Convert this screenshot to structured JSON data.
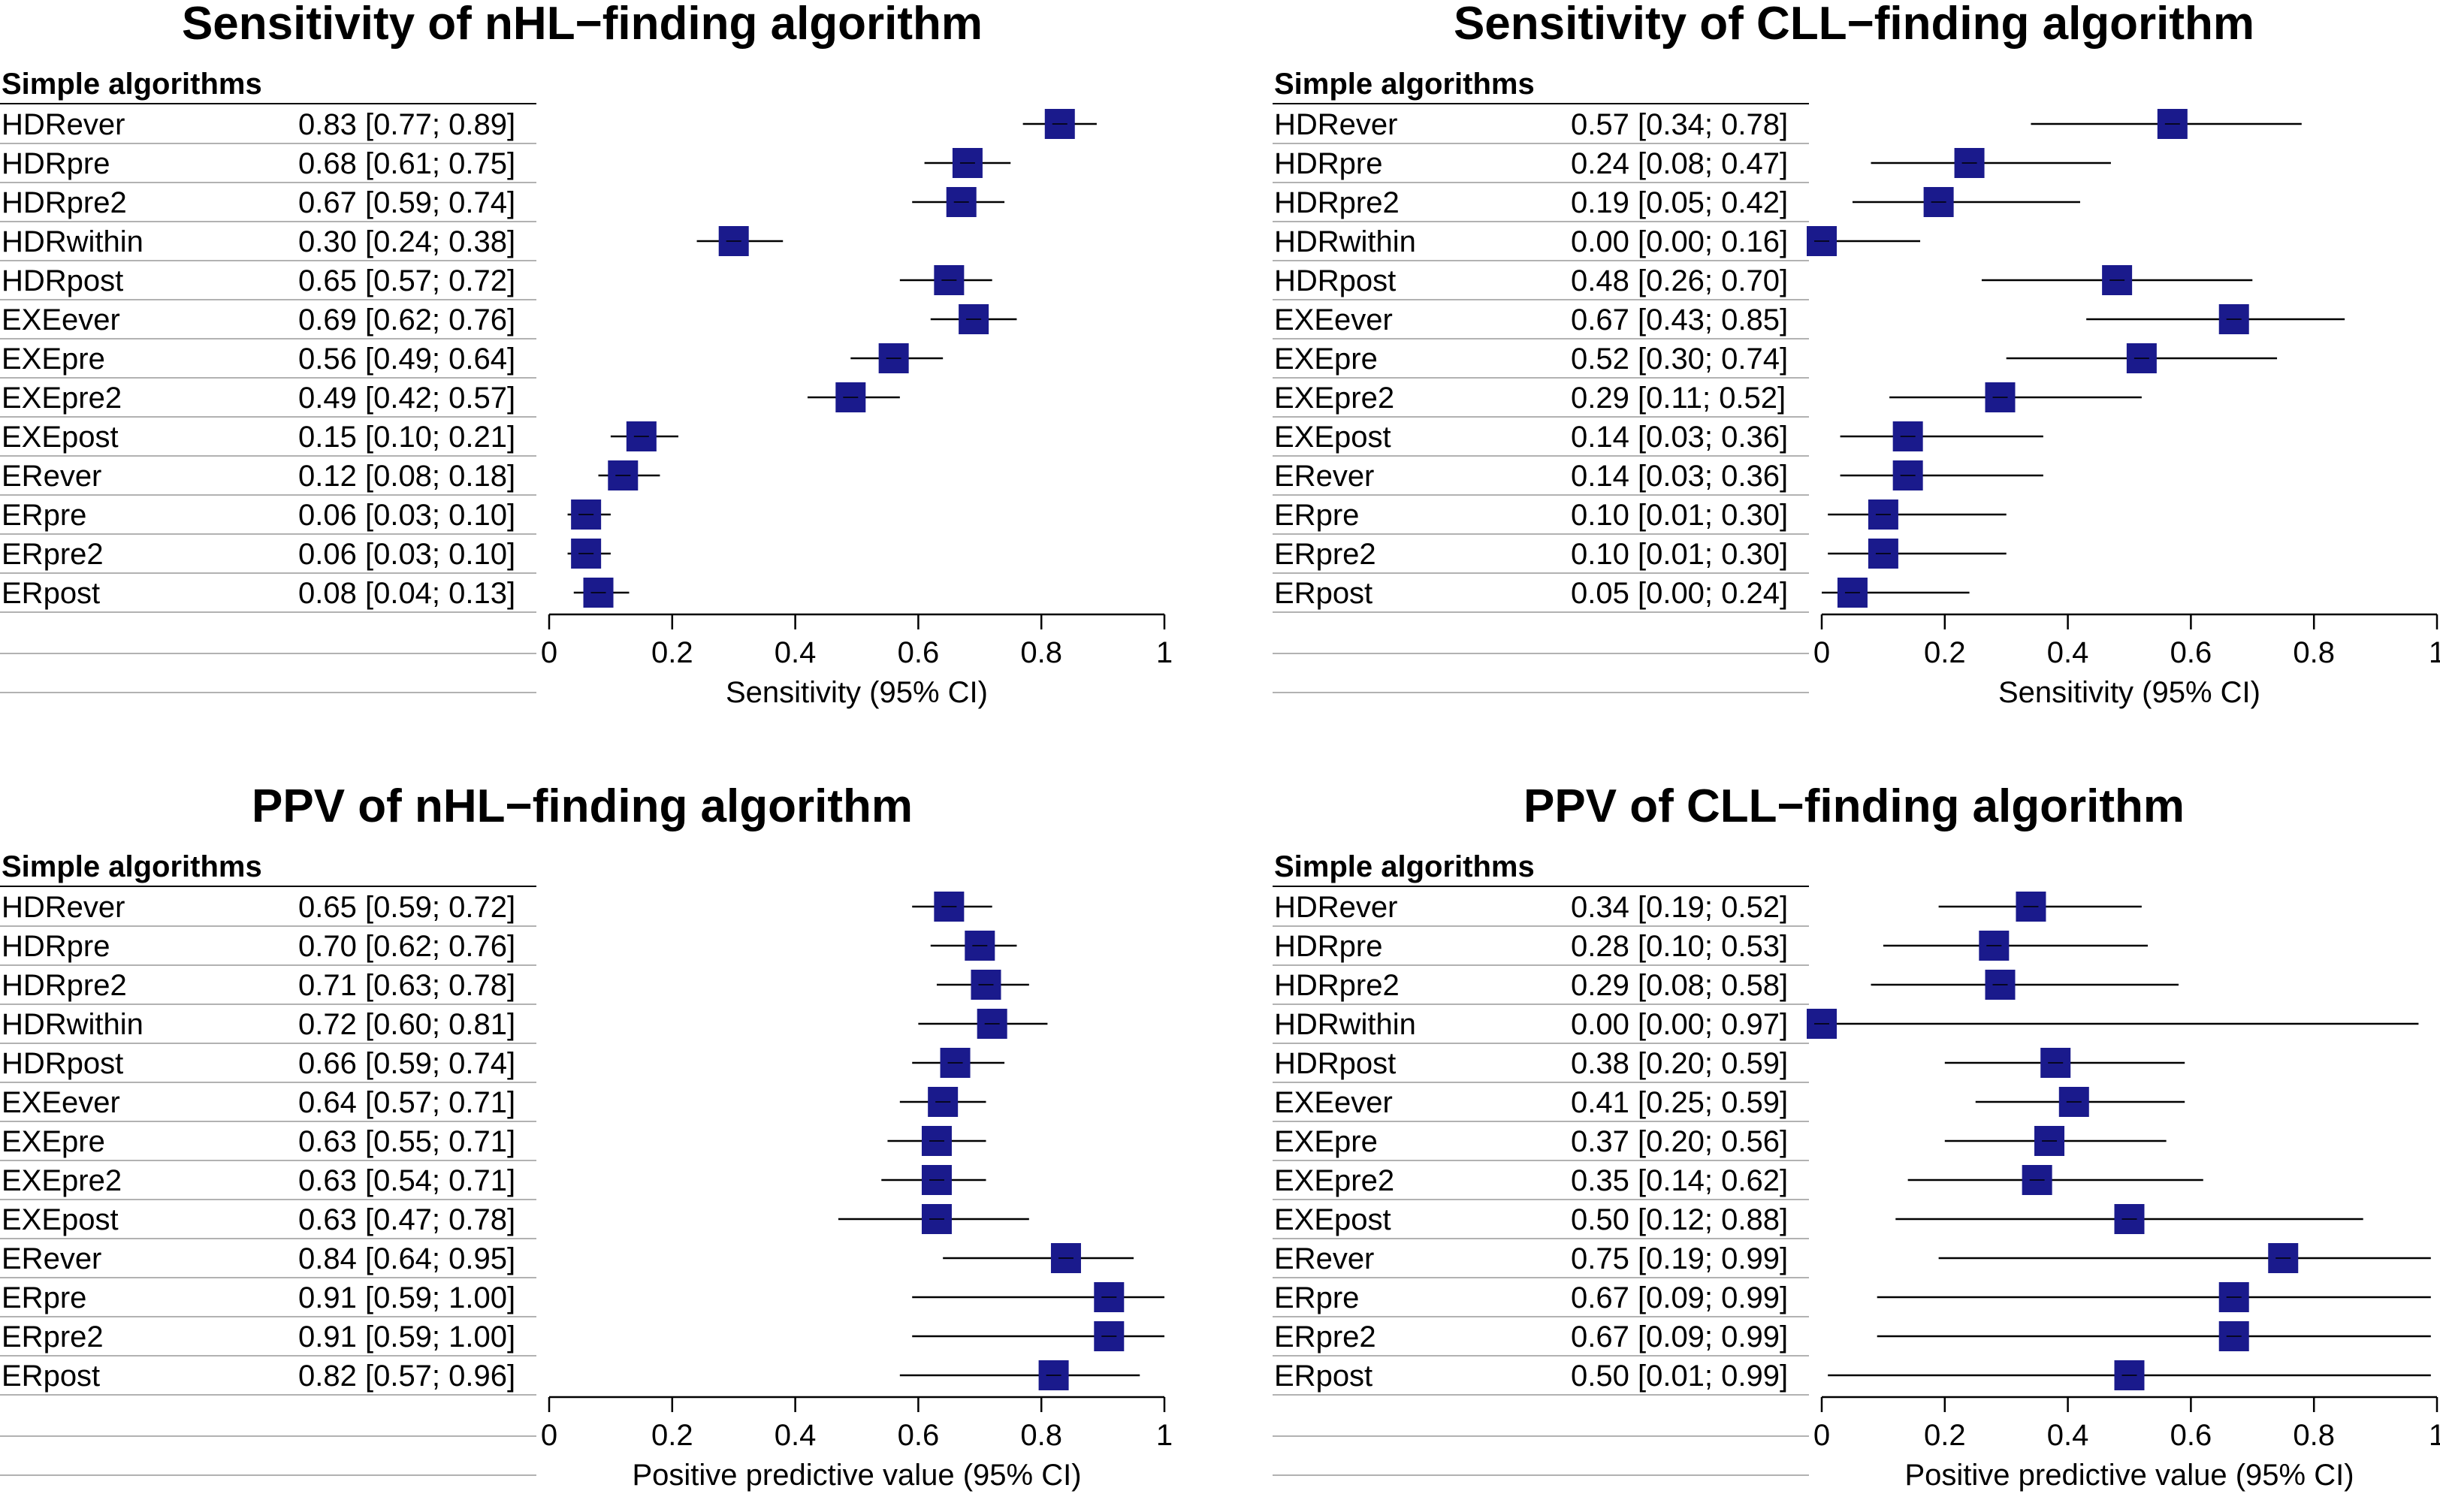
{
  "chart_data": [
    {
      "type": "forest",
      "title": "Sensitivity of nHL−finding algorithm",
      "section_header": "Simple algorithms",
      "xlabel": "Sensitivity (95% CI)",
      "xlim": [
        0,
        1
      ],
      "xticks": [
        "0",
        "0.2",
        "0.4",
        "0.6",
        "0.8",
        "1"
      ],
      "rows": [
        {
          "label": "HDRever",
          "est": 0.83,
          "lo": 0.77,
          "hi": 0.89,
          "text": "0.83 [0.77; 0.89]"
        },
        {
          "label": "HDRpre",
          "est": 0.68,
          "lo": 0.61,
          "hi": 0.75,
          "text": "0.68 [0.61; 0.75]"
        },
        {
          "label": "HDRpre2",
          "est": 0.67,
          "lo": 0.59,
          "hi": 0.74,
          "text": "0.67 [0.59; 0.74]"
        },
        {
          "label": "HDRwithin",
          "est": 0.3,
          "lo": 0.24,
          "hi": 0.38,
          "text": "0.30 [0.24; 0.38]"
        },
        {
          "label": "HDRpost",
          "est": 0.65,
          "lo": 0.57,
          "hi": 0.72,
          "text": "0.65 [0.57; 0.72]"
        },
        {
          "label": "EXEever",
          "est": 0.69,
          "lo": 0.62,
          "hi": 0.76,
          "text": "0.69 [0.62; 0.76]"
        },
        {
          "label": "EXEpre",
          "est": 0.56,
          "lo": 0.49,
          "hi": 0.64,
          "text": "0.56 [0.49; 0.64]"
        },
        {
          "label": "EXEpre2",
          "est": 0.49,
          "lo": 0.42,
          "hi": 0.57,
          "text": "0.49 [0.42; 0.57]"
        },
        {
          "label": "EXEpost",
          "est": 0.15,
          "lo": 0.1,
          "hi": 0.21,
          "text": "0.15 [0.10; 0.21]"
        },
        {
          "label": "ERever",
          "est": 0.12,
          "lo": 0.08,
          "hi": 0.18,
          "text": "0.12 [0.08; 0.18]"
        },
        {
          "label": "ERpre",
          "est": 0.06,
          "lo": 0.03,
          "hi": 0.1,
          "text": "0.06 [0.03; 0.10]"
        },
        {
          "label": "ERpre2",
          "est": 0.06,
          "lo": 0.03,
          "hi": 0.1,
          "text": "0.06 [0.03; 0.10]"
        },
        {
          "label": "ERpost",
          "est": 0.08,
          "lo": 0.04,
          "hi": 0.13,
          "text": "0.08 [0.04; 0.13]"
        }
      ]
    },
    {
      "type": "forest",
      "title": "Sensitivity of CLL−finding algorithm",
      "section_header": "Simple algorithms",
      "xlabel": "Sensitivity (95% CI)",
      "xlim": [
        0,
        1
      ],
      "xticks": [
        "0",
        "0.2",
        "0.4",
        "0.6",
        "0.8",
        "1"
      ],
      "rows": [
        {
          "label": "HDRever",
          "est": 0.57,
          "lo": 0.34,
          "hi": 0.78,
          "text": "0.57 [0.34; 0.78]"
        },
        {
          "label": "HDRpre",
          "est": 0.24,
          "lo": 0.08,
          "hi": 0.47,
          "text": "0.24 [0.08; 0.47]"
        },
        {
          "label": "HDRpre2",
          "est": 0.19,
          "lo": 0.05,
          "hi": 0.42,
          "text": "0.19 [0.05; 0.42]"
        },
        {
          "label": "HDRwithin",
          "est": 0.0,
          "lo": 0.0,
          "hi": 0.16,
          "text": "0.00 [0.00; 0.16]"
        },
        {
          "label": "HDRpost",
          "est": 0.48,
          "lo": 0.26,
          "hi": 0.7,
          "text": "0.48 [0.26; 0.70]"
        },
        {
          "label": "EXEever",
          "est": 0.67,
          "lo": 0.43,
          "hi": 0.85,
          "text": "0.67 [0.43; 0.85]"
        },
        {
          "label": "EXEpre",
          "est": 0.52,
          "lo": 0.3,
          "hi": 0.74,
          "text": "0.52 [0.30; 0.74]"
        },
        {
          "label": "EXEpre2",
          "est": 0.29,
          "lo": 0.11,
          "hi": 0.52,
          "text": "0.29 [0.11; 0.52]"
        },
        {
          "label": "EXEpost",
          "est": 0.14,
          "lo": 0.03,
          "hi": 0.36,
          "text": "0.14 [0.03; 0.36]"
        },
        {
          "label": "ERever",
          "est": 0.14,
          "lo": 0.03,
          "hi": 0.36,
          "text": "0.14 [0.03; 0.36]"
        },
        {
          "label": "ERpre",
          "est": 0.1,
          "lo": 0.01,
          "hi": 0.3,
          "text": "0.10 [0.01; 0.30]"
        },
        {
          "label": "ERpre2",
          "est": 0.1,
          "lo": 0.01,
          "hi": 0.3,
          "text": "0.10 [0.01; 0.30]"
        },
        {
          "label": "ERpost",
          "est": 0.05,
          "lo": 0.0,
          "hi": 0.24,
          "text": "0.05 [0.00; 0.24]"
        }
      ]
    },
    {
      "type": "forest",
      "title": "PPV of nHL−finding algorithm",
      "section_header": "Simple algorithms",
      "xlabel": "Positive predictive value (95% CI)",
      "xlim": [
        0,
        1
      ],
      "xticks": [
        "0",
        "0.2",
        "0.4",
        "0.6",
        "0.8",
        "1"
      ],
      "rows": [
        {
          "label": "HDRever",
          "est": 0.65,
          "lo": 0.59,
          "hi": 0.72,
          "text": "0.65 [0.59; 0.72]"
        },
        {
          "label": "HDRpre",
          "est": 0.7,
          "lo": 0.62,
          "hi": 0.76,
          "text": "0.70 [0.62; 0.76]"
        },
        {
          "label": "HDRpre2",
          "est": 0.71,
          "lo": 0.63,
          "hi": 0.78,
          "text": "0.71 [0.63; 0.78]"
        },
        {
          "label": "HDRwithin",
          "est": 0.72,
          "lo": 0.6,
          "hi": 0.81,
          "text": "0.72 [0.60; 0.81]"
        },
        {
          "label": "HDRpost",
          "est": 0.66,
          "lo": 0.59,
          "hi": 0.74,
          "text": "0.66 [0.59; 0.74]"
        },
        {
          "label": "EXEever",
          "est": 0.64,
          "lo": 0.57,
          "hi": 0.71,
          "text": "0.64 [0.57; 0.71]"
        },
        {
          "label": "EXEpre",
          "est": 0.63,
          "lo": 0.55,
          "hi": 0.71,
          "text": "0.63 [0.55; 0.71]"
        },
        {
          "label": "EXEpre2",
          "est": 0.63,
          "lo": 0.54,
          "hi": 0.71,
          "text": "0.63 [0.54; 0.71]"
        },
        {
          "label": "EXEpost",
          "est": 0.63,
          "lo": 0.47,
          "hi": 0.78,
          "text": "0.63 [0.47; 0.78]"
        },
        {
          "label": "ERever",
          "est": 0.84,
          "lo": 0.64,
          "hi": 0.95,
          "text": "0.84 [0.64; 0.95]"
        },
        {
          "label": "ERpre",
          "est": 0.91,
          "lo": 0.59,
          "hi": 1.0,
          "text": "0.91 [0.59; 1.00]"
        },
        {
          "label": "ERpre2",
          "est": 0.91,
          "lo": 0.59,
          "hi": 1.0,
          "text": "0.91 [0.59; 1.00]"
        },
        {
          "label": "ERpost",
          "est": 0.82,
          "lo": 0.57,
          "hi": 0.96,
          "text": "0.82 [0.57; 0.96]"
        }
      ]
    },
    {
      "type": "forest",
      "title": "PPV of CLL−finding algorithm",
      "section_header": "Simple algorithms",
      "xlabel": "Positive predictive value (95% CI)",
      "xlim": [
        0,
        1
      ],
      "xticks": [
        "0",
        "0.2",
        "0.4",
        "0.6",
        "0.8",
        "1"
      ],
      "rows": [
        {
          "label": "HDRever",
          "est": 0.34,
          "lo": 0.19,
          "hi": 0.52,
          "text": "0.34 [0.19; 0.52]"
        },
        {
          "label": "HDRpre",
          "est": 0.28,
          "lo": 0.1,
          "hi": 0.53,
          "text": "0.28 [0.10; 0.53]"
        },
        {
          "label": "HDRpre2",
          "est": 0.29,
          "lo": 0.08,
          "hi": 0.58,
          "text": "0.29 [0.08; 0.58]"
        },
        {
          "label": "HDRwithin",
          "est": 0.0,
          "lo": 0.0,
          "hi": 0.97,
          "text": "0.00 [0.00; 0.97]"
        },
        {
          "label": "HDRpost",
          "est": 0.38,
          "lo": 0.2,
          "hi": 0.59,
          "text": "0.38 [0.20; 0.59]"
        },
        {
          "label": "EXEever",
          "est": 0.41,
          "lo": 0.25,
          "hi": 0.59,
          "text": "0.41 [0.25; 0.59]"
        },
        {
          "label": "EXEpre",
          "est": 0.37,
          "lo": 0.2,
          "hi": 0.56,
          "text": "0.37 [0.20; 0.56]"
        },
        {
          "label": "EXEpre2",
          "est": 0.35,
          "lo": 0.14,
          "hi": 0.62,
          "text": "0.35 [0.14; 0.62]"
        },
        {
          "label": "EXEpost",
          "est": 0.5,
          "lo": 0.12,
          "hi": 0.88,
          "text": "0.50 [0.12; 0.88]"
        },
        {
          "label": "ERever",
          "est": 0.75,
          "lo": 0.19,
          "hi": 0.99,
          "text": "0.75 [0.19; 0.99]"
        },
        {
          "label": "ERpre",
          "est": 0.67,
          "lo": 0.09,
          "hi": 0.99,
          "text": "0.67 [0.09; 0.99]"
        },
        {
          "label": "ERpre2",
          "est": 0.67,
          "lo": 0.09,
          "hi": 0.99,
          "text": "0.67 [0.09; 0.99]"
        },
        {
          "label": "ERpost",
          "est": 0.5,
          "lo": 0.01,
          "hi": 0.99,
          "text": "0.50 [0.01; 0.99]"
        }
      ]
    }
  ],
  "colors": {
    "marker": "#1a1a8c",
    "ci_line": "#000000",
    "row_line": "#999999"
  }
}
